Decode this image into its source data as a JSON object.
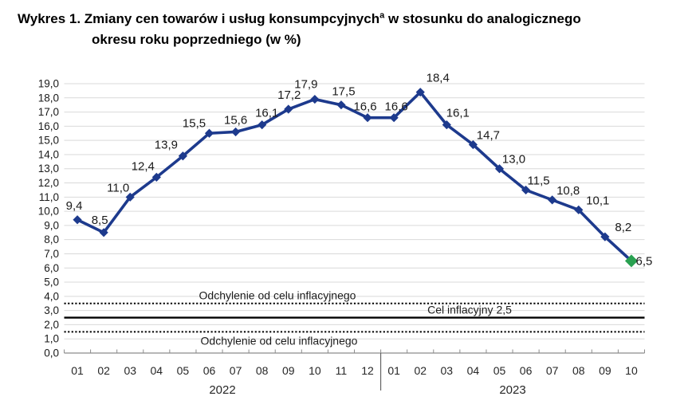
{
  "title": {
    "line1_before_sup": "Wykres 1. Zmiany cen towarów i usług konsumpcyjnych",
    "superscript": "a",
    "line1_after_sup": " w stosunku do analogicznego",
    "line2": "okresu roku poprzedniego (w %)"
  },
  "chart_data": {
    "type": "line",
    "categories": [
      "01",
      "02",
      "03",
      "04",
      "05",
      "06",
      "07",
      "08",
      "09",
      "10",
      "11",
      "12",
      "01",
      "02",
      "03",
      "04",
      "05",
      "06",
      "07",
      "08",
      "09",
      "10"
    ],
    "year_groups": [
      {
        "label": "2022",
        "count": 12
      },
      {
        "label": "2023",
        "count": 10
      }
    ],
    "values": [
      9.4,
      8.5,
      11.0,
      12.4,
      13.9,
      15.5,
      15.6,
      16.1,
      17.2,
      17.9,
      17.5,
      16.6,
      16.6,
      18.4,
      16.1,
      14.7,
      13.0,
      11.5,
      10.8,
      10.1,
      8.2,
      6.5
    ],
    "ylim": [
      0,
      19
    ],
    "ytick_step": 1,
    "decimal_separator": ",",
    "grid": true,
    "legend_position": "none",
    "series_color": "#1d3a8d",
    "last_point_color": "#28a050",
    "reference_lines": [
      {
        "value": 3.5,
        "style": "dotted",
        "label": "Odchylenie od celu inflacyjnego",
        "label_side": "above"
      },
      {
        "value": 2.5,
        "style": "solid",
        "label": "Cel inflacyjny 2,5",
        "label_side": "above"
      },
      {
        "value": 1.5,
        "style": "dotted",
        "label": "Odchylenie od celu inflacyjnego",
        "label_side": "below"
      }
    ]
  }
}
